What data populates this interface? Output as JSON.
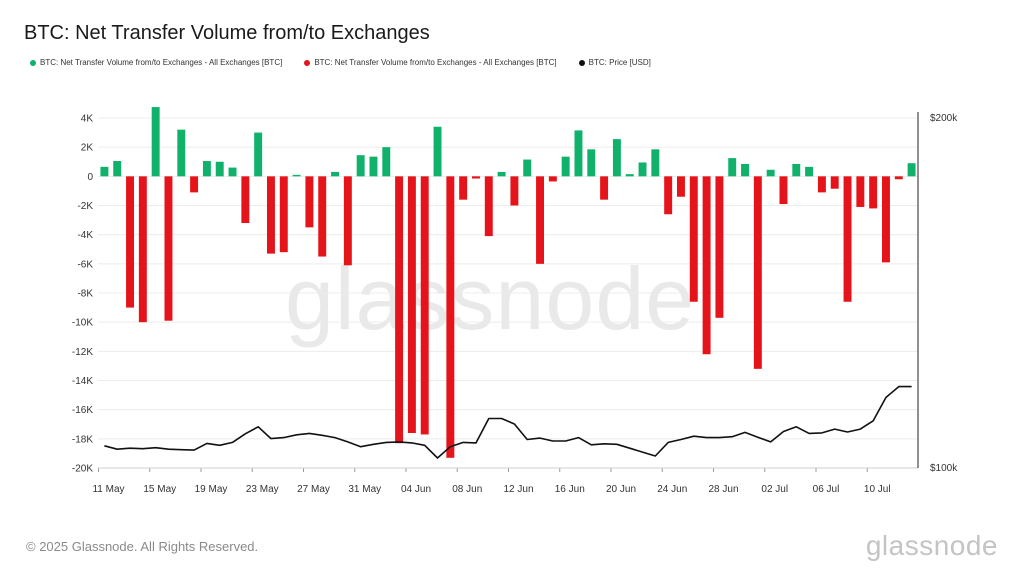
{
  "title": "BTC: Net Transfer Volume from/to Exchanges",
  "footer": "© 2025 Glassnode. All Rights Reserved.",
  "brand": "glassnode",
  "watermark": "glassnode",
  "colors": {
    "inflow": "#10b26b",
    "outflow": "#e5141a",
    "price": "#111111"
  },
  "legend": [
    {
      "label": "BTC: Net Transfer Volume from/to Exchanges - All Exchanges [BTC]",
      "color": "#10b26b"
    },
    {
      "label": "BTC: Net Transfer Volume from/to Exchanges - All Exchanges [BTC]",
      "color": "#e5141a"
    },
    {
      "label": "BTC: Price [USD]",
      "color": "#111111"
    }
  ],
  "chart_data": {
    "type": "bar",
    "x_ticks": [
      "11 May",
      "15 May",
      "19 May",
      "23 May",
      "27 May",
      "31 May",
      "04 Jun",
      "08 Jun",
      "12 Jun",
      "16 Jun",
      "20 Jun",
      "24 Jun",
      "28 Jun",
      "02 Jul",
      "06 Jul",
      "10 Jul"
    ],
    "y_ticks": [
      "4K",
      "2K",
      "0",
      "-2K",
      "-4K",
      "-6K",
      "-8K",
      "-10K",
      "-12K",
      "-14K",
      "-16K",
      "-18K",
      "-20K"
    ],
    "y2_ticks": [
      "$200k",
      "$100k"
    ],
    "ylim": [
      -20000,
      4000
    ],
    "y2lim": [
      100000,
      200000
    ],
    "grid": true,
    "legend_position": "top-left",
    "series": [
      {
        "type": "bar",
        "unit": "BTC",
        "values": [
          650,
          1050,
          -9000,
          -10000,
          4750,
          -9900,
          3200,
          -1100,
          1050,
          1000,
          600,
          -3200,
          3000,
          -5300,
          -5200,
          100,
          -3500,
          -5500,
          300,
          -6100,
          1450,
          1350,
          2000,
          -18300,
          -17600,
          -17700,
          3400,
          -19300,
          -1600,
          -150,
          -4100,
          300,
          -2000,
          1150,
          -6000,
          -350,
          1350,
          3150,
          1850,
          -1600,
          2550,
          150,
          950,
          1850,
          -2600,
          -1400,
          -8600,
          -12200,
          -9700,
          1250,
          850,
          -13200,
          450,
          -1900,
          850,
          650,
          -1100,
          -850,
          -8600,
          -2100,
          -2200,
          -5900,
          -200,
          900
        ]
      },
      {
        "type": "line",
        "name": "BTC: Price [USD]",
        "unit": "USD",
        "values": [
          104500,
          103800,
          104000,
          103900,
          104100,
          103800,
          103700,
          103600,
          105000,
          104600,
          105200,
          107000,
          108500,
          106000,
          106200,
          106800,
          107100,
          106700,
          106200,
          105300,
          104300,
          104800,
          105200,
          105300,
          105100,
          104600,
          102000,
          104300,
          105200,
          105100,
          110300,
          110300,
          109100,
          105800,
          106100,
          105500,
          105500,
          106200,
          104700,
          104900,
          104800,
          104000,
          103200,
          102400,
          105200,
          105800,
          106500,
          106200,
          106200,
          106400,
          107300,
          106300,
          105300,
          107500,
          108500,
          107100,
          107200,
          108000,
          107400,
          108000,
          109800,
          115000,
          117500,
          117500
        ]
      }
    ]
  }
}
